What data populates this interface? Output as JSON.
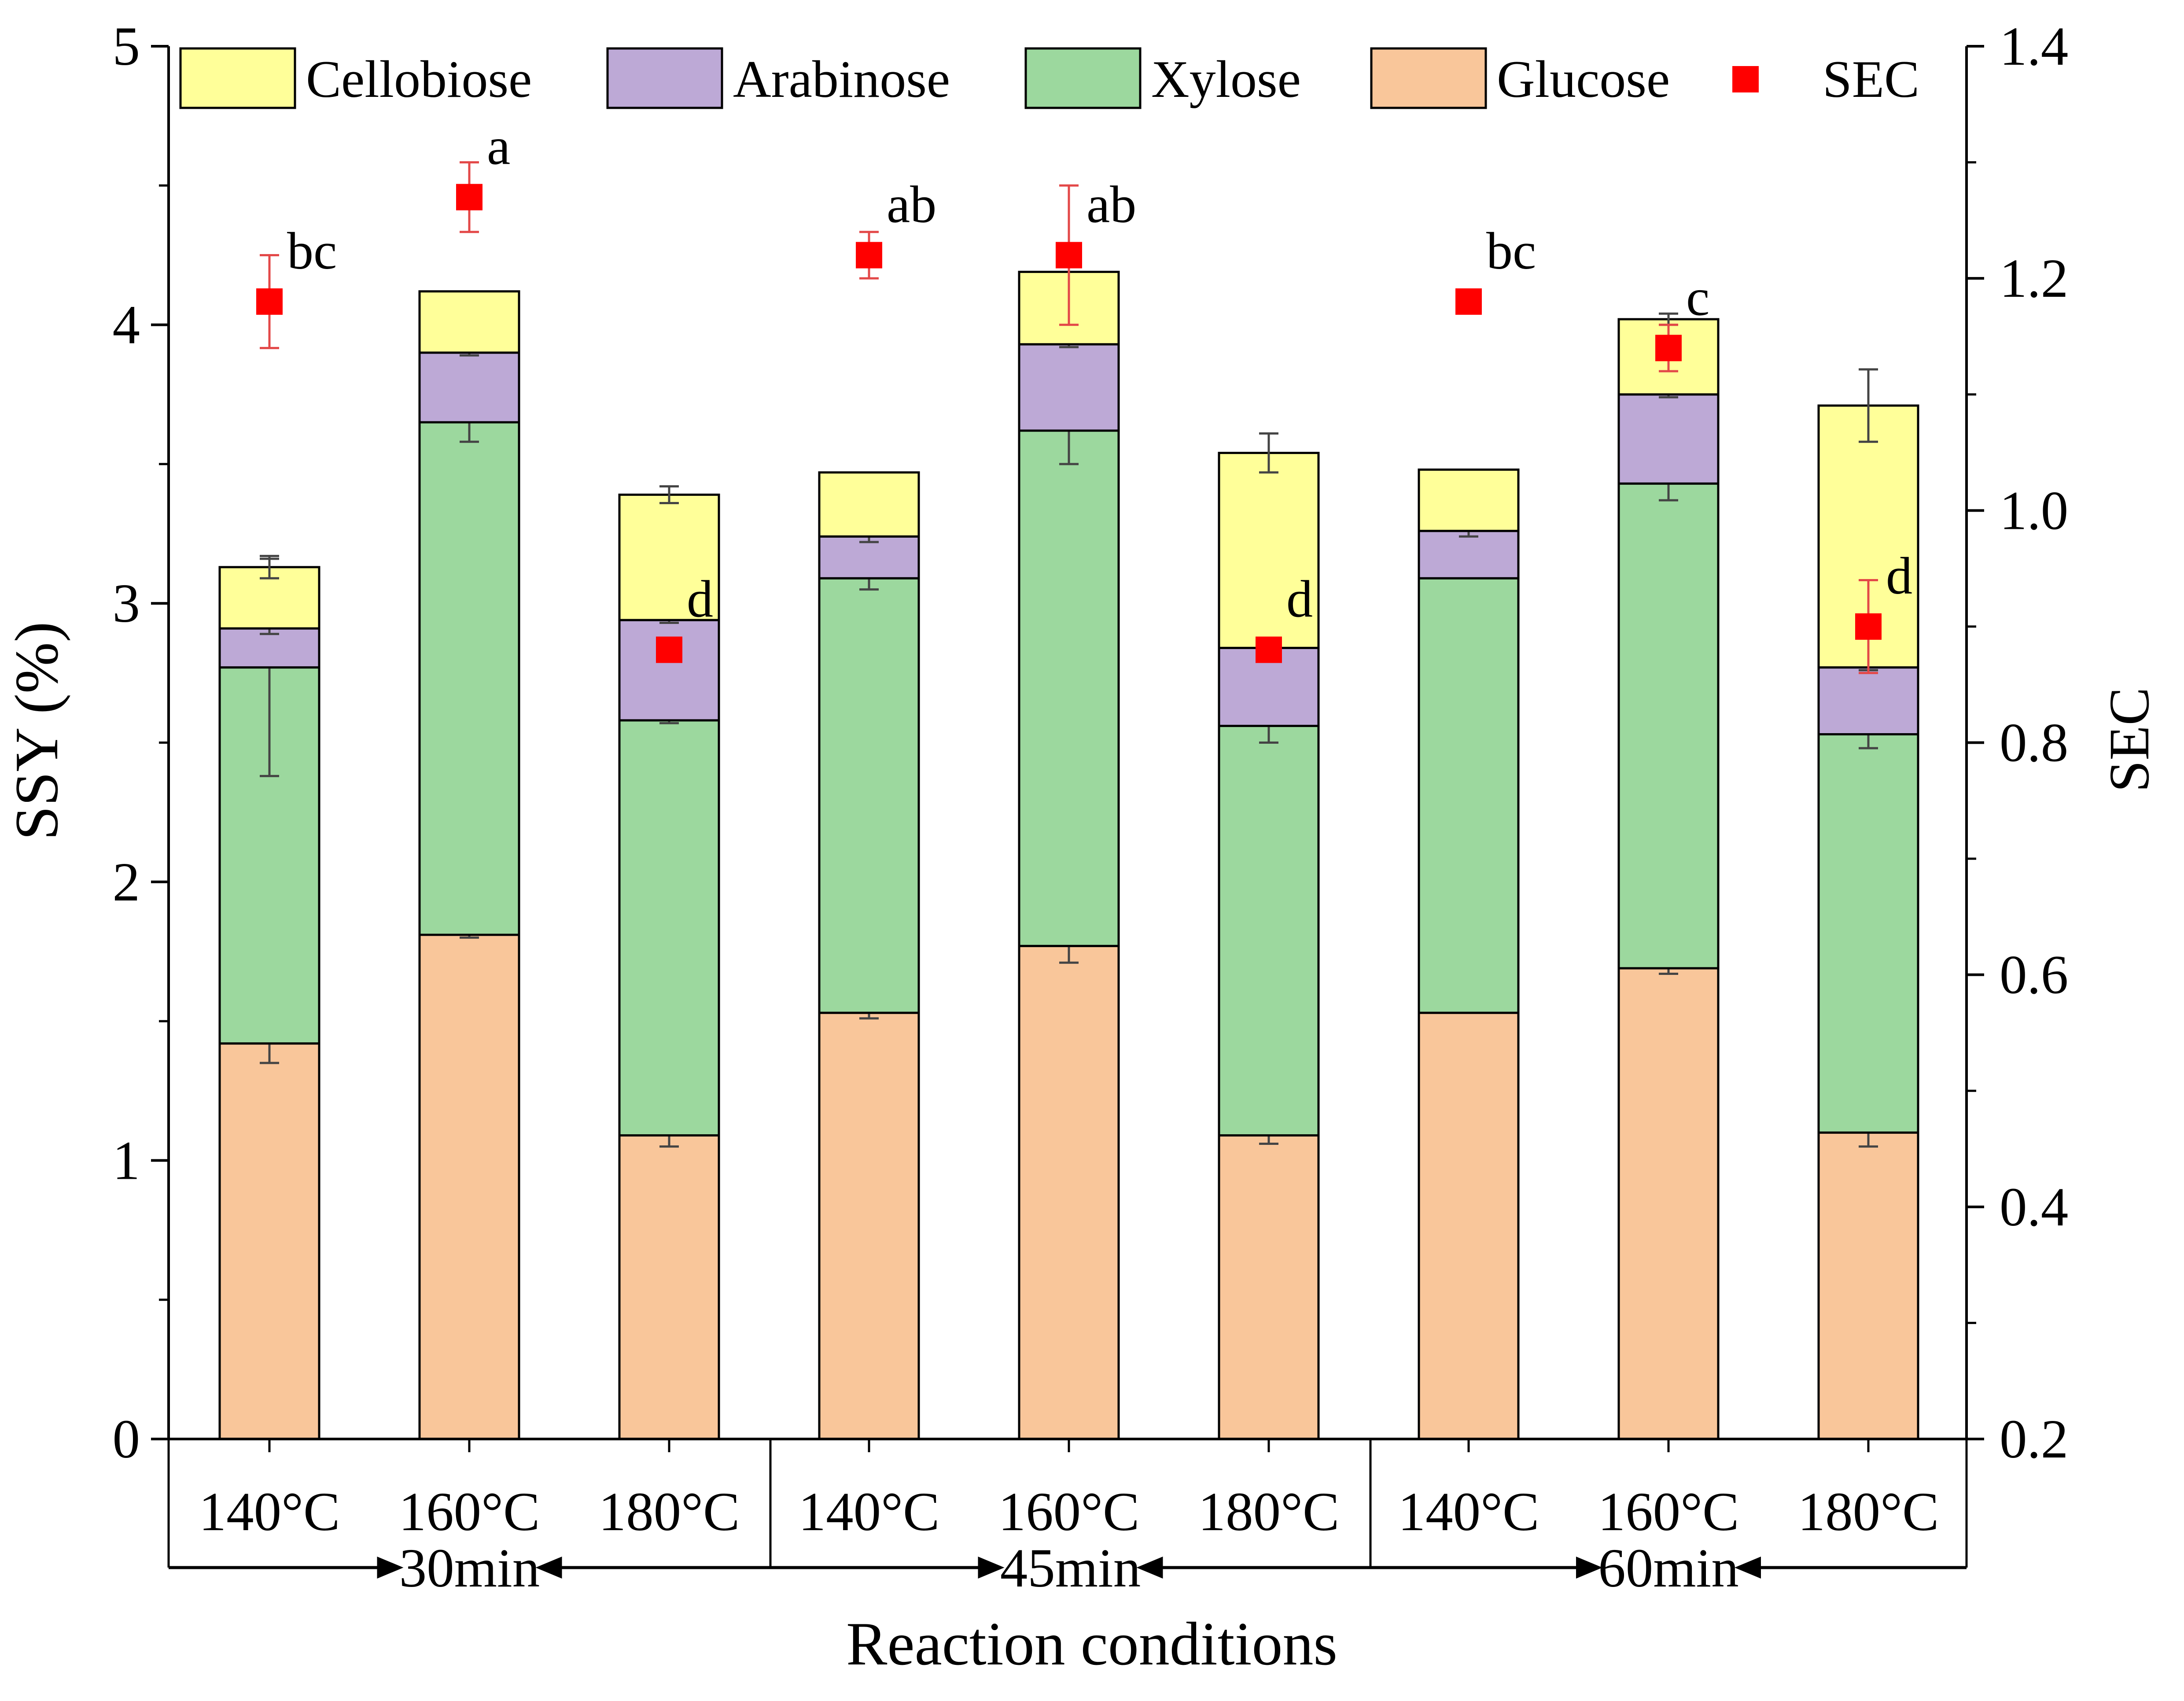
{
  "chart_data": {
    "type": "bar",
    "stacked": true,
    "categories": [
      "140°C",
      "160°C",
      "180°C",
      "140°C",
      "160°C",
      "180°C",
      "140°C",
      "160°C",
      "180°C"
    ],
    "groups": [
      {
        "label": "30min",
        "start": 0,
        "end": 2
      },
      {
        "label": "45min",
        "start": 3,
        "end": 5
      },
      {
        "label": "60min",
        "start": 6,
        "end": 8
      }
    ],
    "series": [
      {
        "name": "Glucose",
        "color": "#F9C69A",
        "values": [
          1.42,
          1.81,
          1.09,
          1.53,
          1.77,
          1.09,
          1.53,
          1.69,
          1.1
        ],
        "errors": [
          0.07,
          0.01,
          0.04,
          0.02,
          0.06,
          0.03,
          0.0,
          0.02,
          0.05
        ]
      },
      {
        "name": "Xylose",
        "color": "#9CD89E",
        "values": [
          1.35,
          1.84,
          1.49,
          1.56,
          1.85,
          1.47,
          1.56,
          1.74,
          1.43
        ],
        "errors": [
          0.39,
          0.07,
          0.01,
          0.04,
          0.12,
          0.06,
          0.0,
          0.06,
          0.05
        ]
      },
      {
        "name": "Arabinose",
        "color": "#BDA9D6",
        "values": [
          0.14,
          0.25,
          0.36,
          0.15,
          0.31,
          0.28,
          0.17,
          0.32,
          0.24
        ],
        "errors": [
          0.02,
          0.01,
          0.01,
          0.02,
          0.01,
          0.01,
          0.02,
          0.01,
          0.01
        ]
      },
      {
        "name": "Cellobiose",
        "color": "#FFFF99",
        "values": [
          0.22,
          0.22,
          0.45,
          0.23,
          0.26,
          0.7,
          0.22,
          0.27,
          0.94
        ],
        "errors": [
          0.04,
          0.0,
          0.03,
          0.0,
          0.0,
          0.07,
          0.0,
          0.02,
          0.13
        ]
      }
    ],
    "sec": {
      "name": "SEC",
      "color": "#FF0000",
      "values": [
        1.18,
        1.27,
        0.88,
        1.22,
        1.22,
        0.88,
        1.18,
        1.14,
        0.9
      ],
      "errors": [
        0.04,
        0.03,
        0.0,
        0.02,
        0.06,
        0.01,
        0.0,
        0.02,
        0.04
      ],
      "letters": [
        "bc",
        "a",
        "d",
        "ab",
        "ab",
        "d",
        "bc",
        "c",
        "d"
      ]
    },
    "xlabel": "Reaction conditions",
    "ylabel": "SSY (%)",
    "y2label": "SEC",
    "ylim": [
      0,
      5
    ],
    "y2lim": [
      0.2,
      1.4
    ],
    "yticks": [
      "0",
      "1",
      "2",
      "3",
      "4",
      "5"
    ],
    "y2ticks": [
      "0.2",
      "0.4",
      "0.6",
      "0.8",
      "1.0",
      "1.2",
      "1.4"
    ],
    "legend": {
      "position": "top",
      "entries": [
        "Cellobiose",
        "Arabinose",
        "Xylose",
        "Glucose",
        "SEC"
      ]
    }
  }
}
